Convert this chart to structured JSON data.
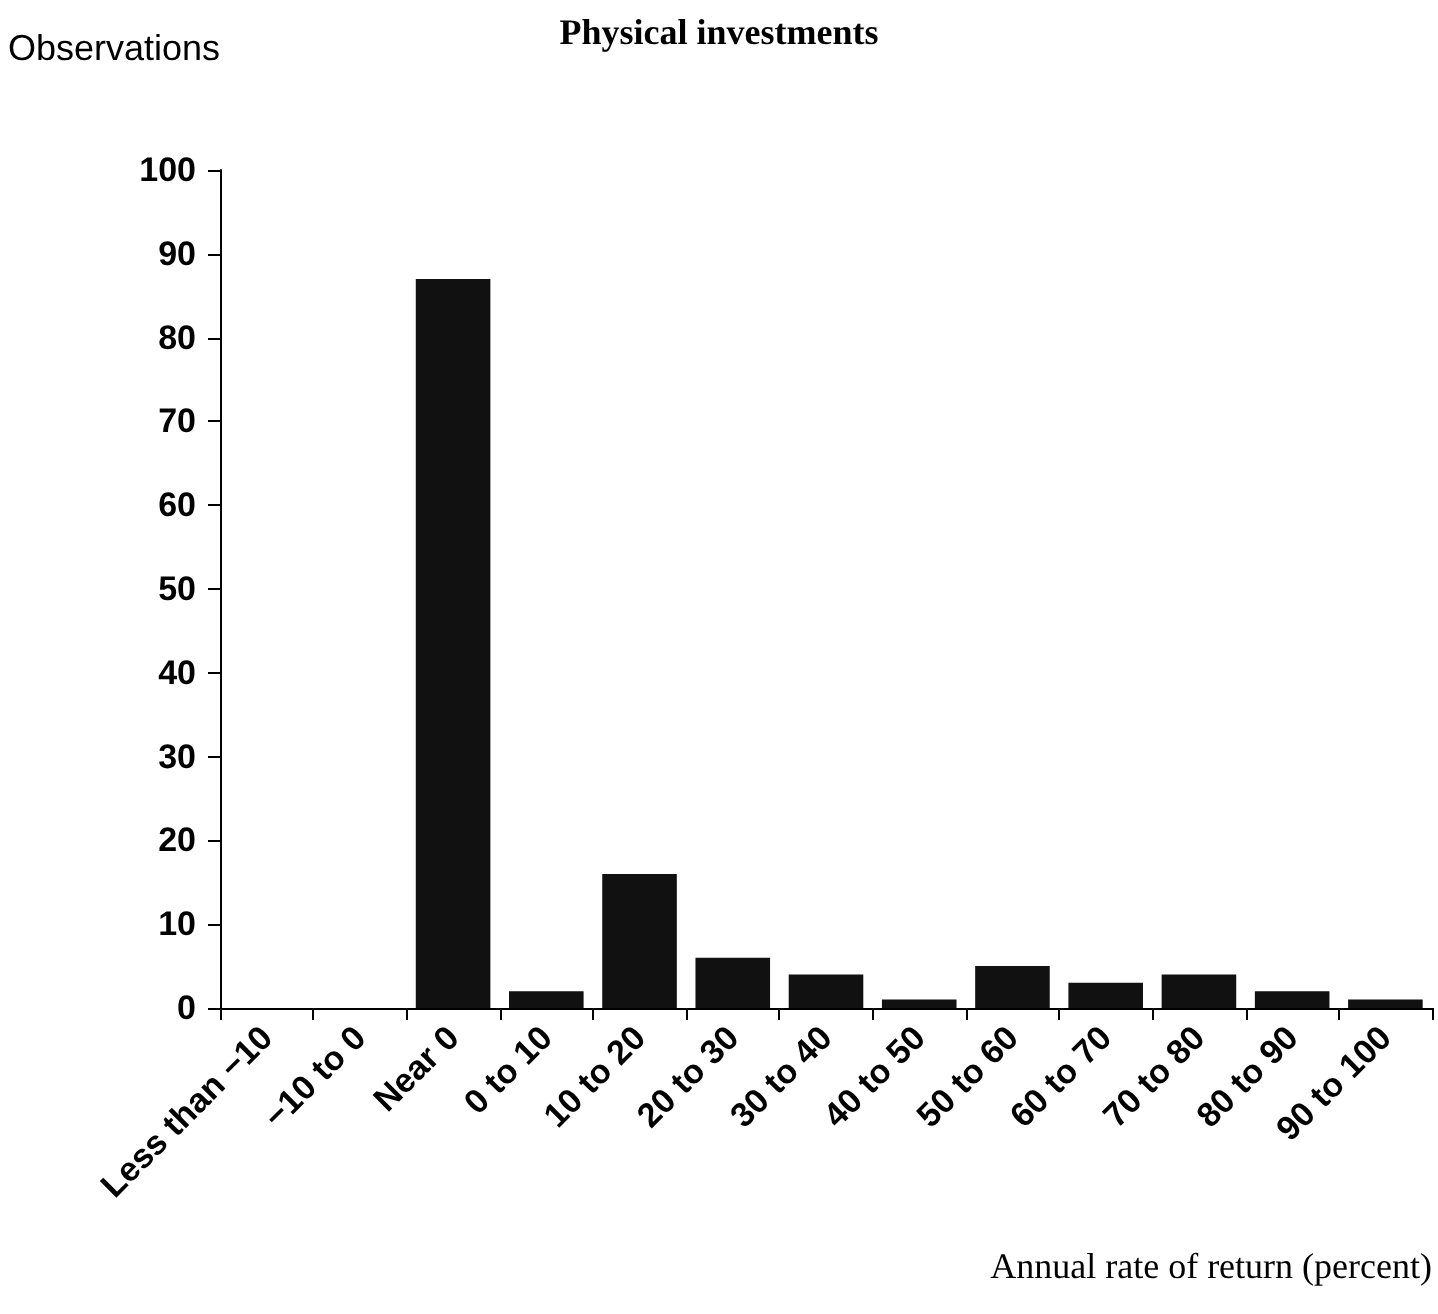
{
  "chart_data": {
    "type": "bar",
    "title": "Physical investments",
    "ylabel": "Observations",
    "xlabel": "Annual rate of return (percent)",
    "categories": [
      "Less than −10",
      "−10 to 0",
      "Near 0",
      "0 to 10",
      "10 to 20",
      "20 to 30",
      "30 to 40",
      "40 to 50",
      "50 to 60",
      "60 to 70",
      "70 to 80",
      "80 to 90",
      "90 to 100"
    ],
    "values": [
      0,
      0,
      87,
      2,
      16,
      6,
      4,
      1,
      5,
      3,
      4,
      2,
      1
    ],
    "color": "#111111",
    "ylim": [
      0,
      100
    ],
    "yticks": [
      0,
      10,
      20,
      30,
      40,
      50,
      60,
      70,
      80,
      90,
      100
    ],
    "grid": false
  }
}
